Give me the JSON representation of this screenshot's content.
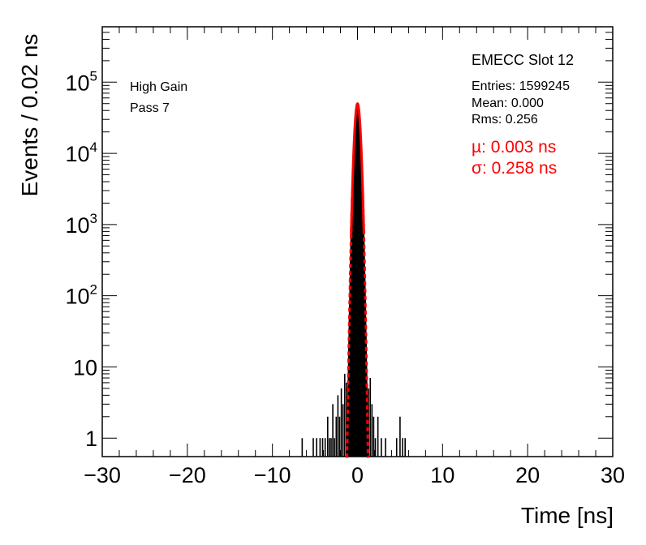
{
  "chart_data": {
    "type": "histogram",
    "xlabel": "Time [ns]",
    "ylabel": "Events / 0.02 ns",
    "xlim": [
      -30,
      30
    ],
    "ylim": [
      0.55,
      600000
    ],
    "yscale": "log",
    "x_ticks": [
      -30,
      -20,
      -10,
      0,
      10,
      20,
      30
    ],
    "x_tick_labels": [
      "−30",
      "−20",
      "−10",
      "0",
      "10",
      "20",
      "30"
    ],
    "y_ticks": [
      {
        "value": 1,
        "base": "1",
        "exp": ""
      },
      {
        "value": 10,
        "base": "10",
        "exp": ""
      },
      {
        "value": 100,
        "base": "10",
        "exp": "2"
      },
      {
        "value": 1000,
        "base": "10",
        "exp": "3"
      },
      {
        "value": 10000,
        "base": "10",
        "exp": "4"
      },
      {
        "value": 100000,
        "base": "10",
        "exp": "5"
      }
    ],
    "histogram": {
      "name": "EMECC Slot 12",
      "entries": 1599245,
      "mean": 0.0,
      "rms": 0.256,
      "bin_width": 0.02,
      "outlier_counts": [
        {
          "x": -6.5,
          "y": 1
        },
        {
          "x": -5.2,
          "y": 1
        },
        {
          "x": -4.8,
          "y": 1
        },
        {
          "x": -4.4,
          "y": 1
        },
        {
          "x": -4.1,
          "y": 1
        },
        {
          "x": -3.8,
          "y": 1
        },
        {
          "x": -3.5,
          "y": 2
        },
        {
          "x": -3.3,
          "y": 1
        },
        {
          "x": -3.1,
          "y": 1
        },
        {
          "x": -2.9,
          "y": 3
        },
        {
          "x": -2.7,
          "y": 1
        },
        {
          "x": -2.5,
          "y": 2
        },
        {
          "x": -2.3,
          "y": 4
        },
        {
          "x": -2.1,
          "y": 2
        },
        {
          "x": -1.9,
          "y": 5
        },
        {
          "x": -1.7,
          "y": 3
        },
        {
          "x": -1.5,
          "y": 8
        },
        {
          "x": -1.3,
          "y": 6
        },
        {
          "x": 1.3,
          "y": 5
        },
        {
          "x": 1.5,
          "y": 7
        },
        {
          "x": 1.7,
          "y": 3
        },
        {
          "x": 1.9,
          "y": 2
        },
        {
          "x": 2.1,
          "y": 1
        },
        {
          "x": 2.4,
          "y": 2
        },
        {
          "x": 2.8,
          "y": 1
        },
        {
          "x": 3.3,
          "y": 1
        },
        {
          "x": 4.6,
          "y": 1
        },
        {
          "x": 5.0,
          "y": 2
        },
        {
          "x": 5.3,
          "y": 1
        },
        {
          "x": 5.6,
          "y": 1
        }
      ]
    },
    "fit": {
      "type": "gaussian",
      "color": "#ff0000",
      "mu": 0.003,
      "sigma": 0.258,
      "amplitude": 50000
    },
    "grid": false,
    "legend": "none"
  },
  "annotations": {
    "title": "EMECC Slot 12",
    "gain": "High Gain",
    "pass": "Pass 7",
    "entries": "Entries: 1599245",
    "mean": "Mean: 0.000",
    "rms": "Rms: 0.256",
    "mu": "µ: 0.003 ns",
    "sigma": "σ: 0.258 ns"
  },
  "colors": {
    "histogram": "#000000",
    "fit": "#ff0000",
    "axis": "#000000"
  }
}
